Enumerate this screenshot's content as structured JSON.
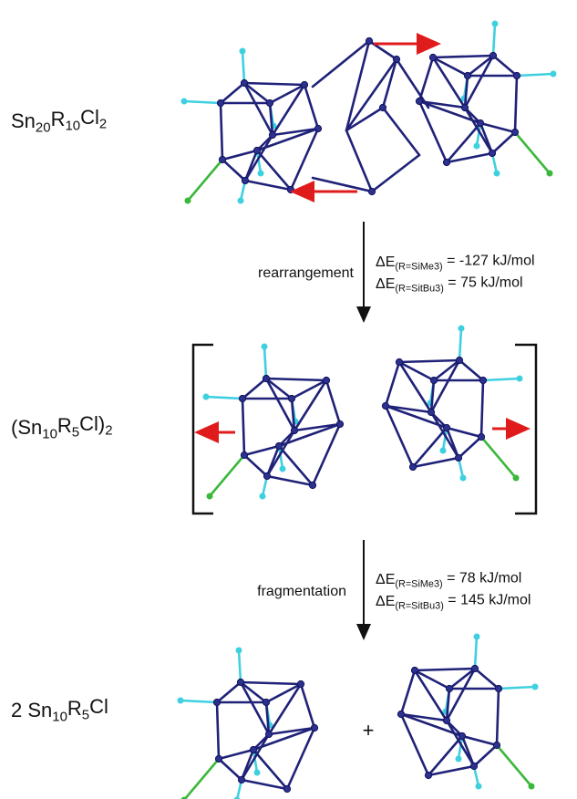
{
  "species": [
    {
      "formula": [
        {
          "text": "Sn"
        },
        {
          "sub": "20"
        },
        {
          "text": "R"
        },
        {
          "sub": "10"
        },
        {
          "text": "Cl"
        },
        {
          "sub": "2"
        }
      ]
    },
    {
      "formula": [
        {
          "text": "(Sn"
        },
        {
          "sub": "10"
        },
        {
          "text": "R"
        },
        {
          "sub": "5"
        },
        {
          "text": "Cl)"
        },
        {
          "sub": "2"
        }
      ]
    },
    {
      "formula": [
        {
          "text": "2 Sn"
        },
        {
          "sub": "10"
        },
        {
          "text": "R"
        },
        {
          "sub": "5"
        },
        {
          "text": "Cl"
        }
      ]
    }
  ],
  "steps": [
    {
      "label": "rearrangement",
      "energies": [
        [
          {
            "text": "ΔE"
          },
          {
            "sub": "(R=SiMe3)"
          },
          {
            "text": " = -127 kJ/mol"
          }
        ],
        [
          {
            "text": "ΔE"
          },
          {
            "sub": "(R=SitBu3)"
          },
          {
            "text": " = 75 kJ/mol"
          }
        ]
      ]
    },
    {
      "label": "fragmentation",
      "energies": [
        [
          {
            "text": "ΔE"
          },
          {
            "sub": "(R=SiMe3)"
          },
          {
            "text": " = 78 kJ/mol"
          }
        ],
        [
          {
            "text": "ΔE"
          },
          {
            "sub": "(R=SitBu3)"
          },
          {
            "text": " = 145 kJ/mol"
          }
        ]
      ]
    }
  ],
  "plus": "+"
}
